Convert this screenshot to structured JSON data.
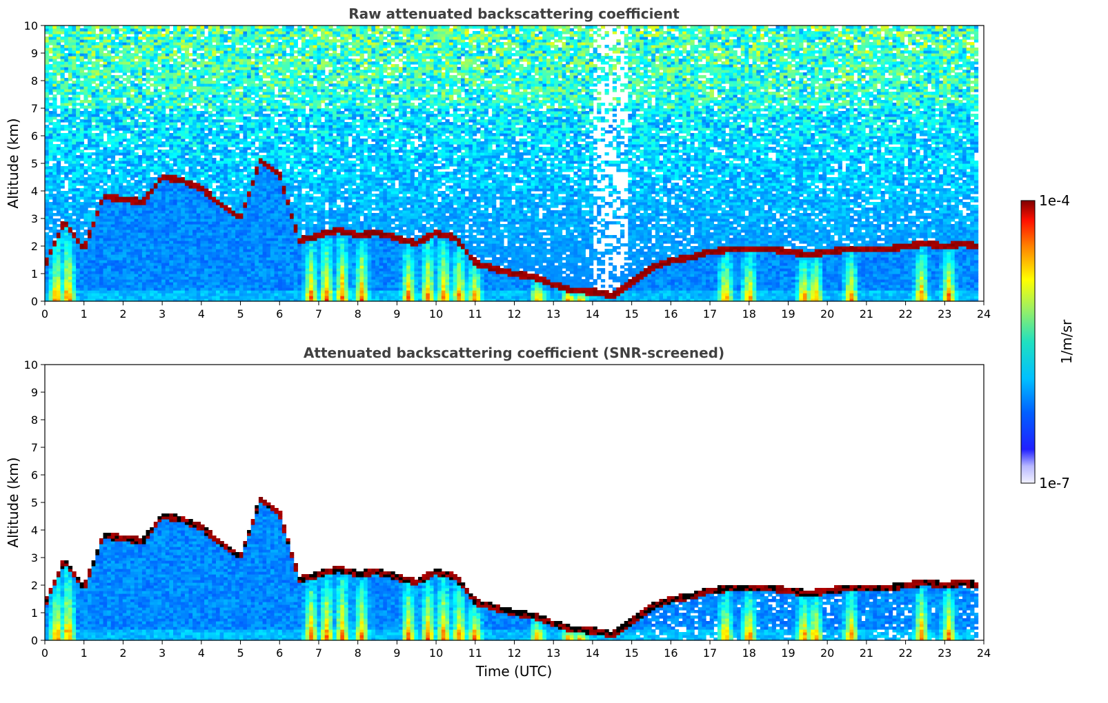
{
  "chart_data": [
    {
      "type": "heatmap",
      "title": "Raw attenuated backscattering coefficient",
      "xlabel": "",
      "ylabel": "Altitude (km)",
      "xlim": [
        0,
        24
      ],
      "ylim": [
        0,
        10
      ],
      "xticks": [
        "0",
        "1",
        "2",
        "3",
        "4",
        "5",
        "6",
        "7",
        "8",
        "9",
        "10",
        "11",
        "12",
        "13",
        "14",
        "15",
        "16",
        "17",
        "18",
        "19",
        "20",
        "21",
        "22",
        "23",
        "24"
      ],
      "yticks": [
        "0",
        "1",
        "2",
        "3",
        "4",
        "5",
        "6",
        "7",
        "8",
        "9",
        "10"
      ],
      "screened": false
    },
    {
      "type": "heatmap",
      "title": "Attenuated backscattering coefficient (SNR-screened)",
      "xlabel": "Time (UTC)",
      "ylabel": "Altitude (km)",
      "xlim": [
        0,
        24
      ],
      "ylim": [
        0,
        10
      ],
      "xticks": [
        "0",
        "1",
        "2",
        "3",
        "4",
        "5",
        "6",
        "7",
        "8",
        "9",
        "10",
        "11",
        "12",
        "13",
        "14",
        "15",
        "16",
        "17",
        "18",
        "19",
        "20",
        "21",
        "22",
        "23",
        "24"
      ],
      "yticks": [
        "0",
        "1",
        "2",
        "3",
        "4",
        "5",
        "6",
        "7",
        "8",
        "9",
        "10"
      ],
      "screened": true
    }
  ],
  "colorbar": {
    "max_label": "1e-4",
    "min_label": "1e-7",
    "unit_label": "1/m/sr",
    "colormap": "jet",
    "scale": "log"
  },
  "cloud_layer": {
    "description_time_h": [
      0.0,
      0.5,
      1.0,
      1.5,
      2.0,
      2.5,
      3.0,
      3.5,
      4.0,
      4.5,
      5.0,
      5.5,
      6.0,
      6.5,
      7.0,
      7.5,
      8.0,
      8.5,
      9.0,
      9.5,
      10.0,
      10.5,
      11.0,
      11.5,
      12.0,
      12.5,
      13.0,
      13.5,
      14.0,
      14.5,
      15.0,
      15.5,
      16.0,
      16.5,
      17.0,
      17.5,
      18.0,
      18.5,
      19.0,
      19.5,
      20.0,
      20.5,
      21.0,
      21.5,
      22.0,
      22.5,
      23.0,
      23.5,
      23.8
    ],
    "altitude_km": [
      1.3,
      2.9,
      1.9,
      3.8,
      3.7,
      3.6,
      4.5,
      4.4,
      4.1,
      3.5,
      3.0,
      5.1,
      4.6,
      2.2,
      2.4,
      2.6,
      2.4,
      2.5,
      2.3,
      2.1,
      2.5,
      2.3,
      1.4,
      1.2,
      1.0,
      0.9,
      0.6,
      0.4,
      0.35,
      0.2,
      0.7,
      1.2,
      1.5,
      1.6,
      1.8,
      1.9,
      1.9,
      1.9,
      1.8,
      1.7,
      1.8,
      1.9,
      1.9,
      1.9,
      2.0,
      2.1,
      2.0,
      2.1,
      2.0
    ]
  }
}
